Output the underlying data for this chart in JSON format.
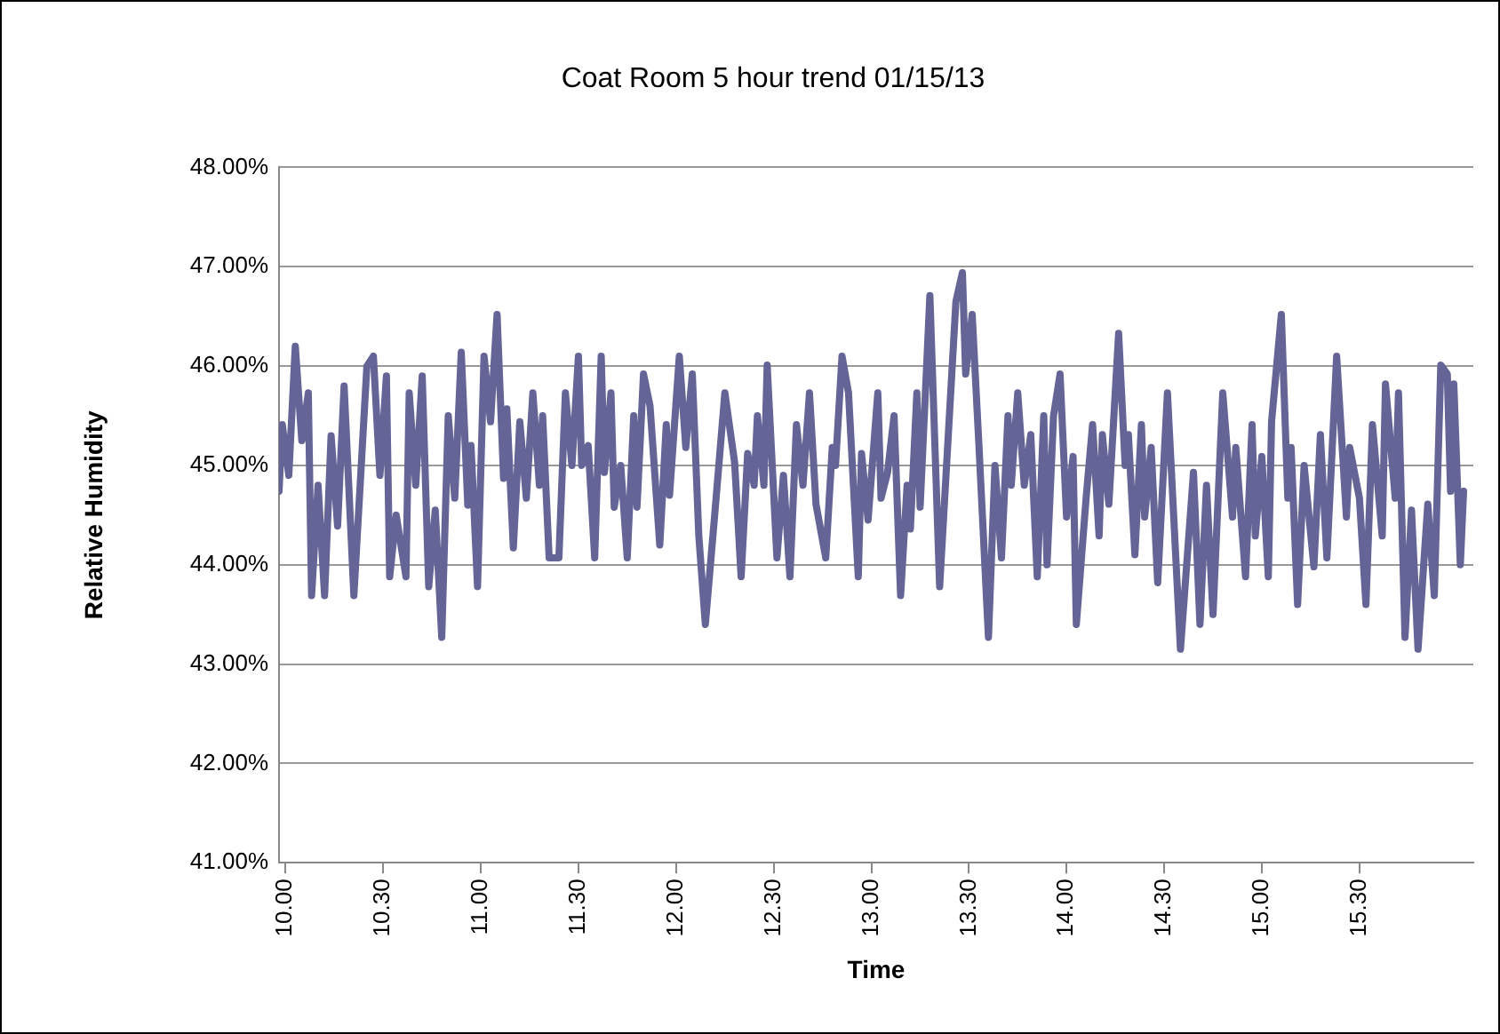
{
  "chart_data": {
    "type": "line",
    "title": "Coat Room 5 hour trend 01/15/13",
    "xlabel": "Time",
    "ylabel": "Relative Humidity",
    "xlim": [
      "--01-15T09:58",
      "--01-15T16:05"
    ],
    "xticks": [
      {
        "value": "--01-15T10:00",
        "label": "10.00"
      },
      {
        "value": "--01-15T10:30",
        "label": "10.30"
      },
      {
        "value": "--01-15T11:00",
        "label": "11.00"
      },
      {
        "value": "--01-15T11:30",
        "label": "11.30"
      },
      {
        "value": "--01-15T12:00",
        "label": "12.00"
      },
      {
        "value": "--01-15T12:30",
        "label": "12.30"
      },
      {
        "value": "--01-15T13:00",
        "label": "13.00"
      },
      {
        "value": "--01-15T13:30",
        "label": "13.30"
      },
      {
        "value": "--01-15T14:00",
        "label": "14.00"
      },
      {
        "value": "--01-15T14:30",
        "label": "14.30"
      },
      {
        "value": "--01-15T15:00",
        "label": "15.00"
      },
      {
        "value": "--01-15T15:30",
        "label": "15.30"
      }
    ],
    "ylim": [
      41,
      48
    ],
    "yticks": [
      {
        "value": 41,
        "label": "41.00%"
      },
      {
        "value": 42,
        "label": "42.00%"
      },
      {
        "value": 43,
        "label": "43.00%"
      },
      {
        "value": 44,
        "label": "44.00%"
      },
      {
        "value": 45,
        "label": "45.00%"
      },
      {
        "value": 46,
        "label": "46.00%"
      },
      {
        "value": 47,
        "label": "47.00%"
      },
      {
        "value": 48,
        "label": "48.00%"
      }
    ],
    "grid": "y",
    "legend": false,
    "marker": "none",
    "line_style": "solid",
    "series": [
      {
        "color": "#646496",
        "x": [
          "--01-15T09:58",
          "--01-15T09:59",
          "--01-15T10:01",
          "--01-15T10:03",
          "--01-15T10:05",
          "--01-15T10:07",
          "--01-15T10:08",
          "--01-15T10:10",
          "--01-15T10:12",
          "--01-15T10:14",
          "--01-15T10:16",
          "--01-15T10:18",
          "--01-15T10:21",
          "--01-15T10:25",
          "--01-15T10:27",
          "--01-15T10:29",
          "--01-15T10:31",
          "--01-15T10:32",
          "--01-15T10:34",
          "--01-15T10:37",
          "--01-15T10:38",
          "--01-15T10:40",
          "--01-15T10:42",
          "--01-15T10:44",
          "--01-15T10:46",
          "--01-15T10:48",
          "--01-15T10:50",
          "--01-15T10:52",
          "--01-15T10:54",
          "--01-15T10:56",
          "--01-15T10:57",
          "--01-15T10:59",
          "--01-15T11:01",
          "--01-15T11:03",
          "--01-15T11:05",
          "--01-15T11:07",
          "--01-15T11:08",
          "--01-15T11:10",
          "--01-15T11:12",
          "--01-15T11:14",
          "--01-15T11:16",
          "--01-15T11:18",
          "--01-15T11:19",
          "--01-15T11:21",
          "--01-15T11:24",
          "--01-15T11:26",
          "--01-15T11:28",
          "--01-15T11:30",
          "--01-15T11:31",
          "--01-15T11:33",
          "--01-15T11:35",
          "--01-15T11:37",
          "--01-15T11:38",
          "--01-15T11:40",
          "--01-15T11:41",
          "--01-15T11:43",
          "--01-15T11:45",
          "--01-15T11:47",
          "--01-15T11:48",
          "--01-15T11:50",
          "--01-15T11:52",
          "--01-15T11:55",
          "--01-15T11:57",
          "--01-15T11:58",
          "--01-15T12:01",
          "--01-15T12:03",
          "--01-15T12:05",
          "--01-15T12:07",
          "--01-15T12:09",
          "--01-15T12:12",
          "--01-15T12:15",
          "--01-15T12:18",
          "--01-15T12:20",
          "--01-15T12:22",
          "--01-15T12:24",
          "--01-15T12:25",
          "--01-15T12:27",
          "--01-15T12:28",
          "--01-15T12:31",
          "--01-15T12:33",
          "--01-15T12:35",
          "--01-15T12:37",
          "--01-15T12:39",
          "--01-15T12:41",
          "--01-15T12:43",
          "--01-15T12:46",
          "--01-15T12:48",
          "--01-15T12:49",
          "--01-15T12:51",
          "--01-15T12:53",
          "--01-15T12:56",
          "--01-15T12:57",
          "--01-15T12:59",
          "--01-15T13:02",
          "--01-15T13:03",
          "--01-15T13:05",
          "--01-15T13:07",
          "--01-15T13:09",
          "--01-15T13:11",
          "--01-15T13:12",
          "--01-15T13:14",
          "--01-15T13:15",
          "--01-15T13:18",
          "--01-15T13:21",
          "--01-15T13:26",
          "--01-15T13:28",
          "--01-15T13:29",
          "--01-15T13:31",
          "--01-15T13:33",
          "--01-15T13:36",
          "--01-15T13:38",
          "--01-15T13:40",
          "--01-15T13:42",
          "--01-15T13:43",
          "--01-15T13:45",
          "--01-15T13:47",
          "--01-15T13:49",
          "--01-15T13:51",
          "--01-15T13:53",
          "--01-15T13:54",
          "--01-15T13:56",
          "--01-15T13:58",
          "--01-15T14:00",
          "--01-15T14:02",
          "--01-15T14:03",
          "--01-15T14:06",
          "--01-15T14:08",
          "--01-15T14:10",
          "--01-15T14:11",
          "--01-15T14:13",
          "--01-15T14:16",
          "--01-15T14:18",
          "--01-15T14:19",
          "--01-15T14:21",
          "--01-15T14:23",
          "--01-15T14:24",
          "--01-15T14:26",
          "--01-15T14:28",
          "--01-15T14:31",
          "--01-15T14:35",
          "--01-15T14:39",
          "--01-15T14:41",
          "--01-15T14:43",
          "--01-15T14:45",
          "--01-15T14:48",
          "--01-15T14:51",
          "--01-15T14:52",
          "--01-15T14:55",
          "--01-15T14:57",
          "--01-15T14:58",
          "--01-15T15:00",
          "--01-15T15:02",
          "--01-15T15:03",
          "--01-15T15:06",
          "--01-15T15:08",
          "--01-15T15:09",
          "--01-15T15:11",
          "--01-15T15:13",
          "--01-15T15:15",
          "--01-15T15:16",
          "--01-15T15:18",
          "--01-15T15:20",
          "--01-15T15:23",
          "--01-15T15:26",
          "--01-15T15:27",
          "--01-15T15:30",
          "--01-15T15:32",
          "--01-15T15:34",
          "--01-15T15:37",
          "--01-15T15:38",
          "--01-15T15:41",
          "--01-15T15:42",
          "--01-15T15:44",
          "--01-15T15:46",
          "--01-15T15:48",
          "--01-15T15:51",
          "--01-15T15:53",
          "--01-15T15:55",
          "--01-15T15:57",
          "--01-15T15:58",
          "--01-15T15:59",
          "--01-15T16:01",
          "--01-15T16:02"
        ],
        "values": [
          44.74,
          45.41,
          44.9,
          46.2,
          45.25,
          45.73,
          43.69,
          44.8,
          43.69,
          45.3,
          44.39,
          45.8,
          43.69,
          46.0,
          46.1,
          44.9,
          45.9,
          43.88,
          44.5,
          43.88,
          45.73,
          44.8,
          45.9,
          43.78,
          44.55,
          43.27,
          45.5,
          44.67,
          46.14,
          44.6,
          45.2,
          43.78,
          46.1,
          45.44,
          46.52,
          44.87,
          45.57,
          44.17,
          45.44,
          44.67,
          45.73,
          44.8,
          45.5,
          44.07,
          44.07,
          45.73,
          45.0,
          46.1,
          45.0,
          45.2,
          44.07,
          46.1,
          44.93,
          45.73,
          44.58,
          45.0,
          44.07,
          45.5,
          44.58,
          45.92,
          45.6,
          44.2,
          45.41,
          44.7,
          46.1,
          45.18,
          45.92,
          44.29,
          43.4,
          44.55,
          45.73,
          45.03,
          43.88,
          45.12,
          44.8,
          45.5,
          44.8,
          46.01,
          44.07,
          44.9,
          43.88,
          45.41,
          44.8,
          45.73,
          44.61,
          44.07,
          45.18,
          45.0,
          46.1,
          45.73,
          43.88,
          45.12,
          44.45,
          45.73,
          44.67,
          44.93,
          45.5,
          43.69,
          44.8,
          44.36,
          45.73,
          44.58,
          46.71,
          43.78,
          46.65,
          46.94,
          45.92,
          46.52,
          45.25,
          43.27,
          45.0,
          44.07,
          45.5,
          44.8,
          45.73,
          44.8,
          45.31,
          43.88,
          45.5,
          44.0,
          45.5,
          45.92,
          44.48,
          45.09,
          43.4,
          44.67,
          45.41,
          44.29,
          45.31,
          44.61,
          46.33,
          45.0,
          45.31,
          44.1,
          45.41,
          44.48,
          45.18,
          43.82,
          45.73,
          43.15,
          44.93,
          43.4,
          44.8,
          43.5,
          45.73,
          44.48,
          45.18,
          43.88,
          45.41,
          44.29,
          45.09,
          43.88,
          45.44,
          46.52,
          44.67,
          45.18,
          43.6,
          45.0,
          44.32,
          43.98,
          45.31,
          44.07,
          46.1,
          44.48,
          45.18,
          44.67,
          43.6,
          45.41,
          44.29,
          45.82,
          44.67,
          45.73,
          43.27,
          44.55,
          43.15,
          44.61,
          43.69,
          46.01,
          45.92,
          44.74,
          45.82,
          44.0,
          44.74
        ]
      }
    ]
  }
}
